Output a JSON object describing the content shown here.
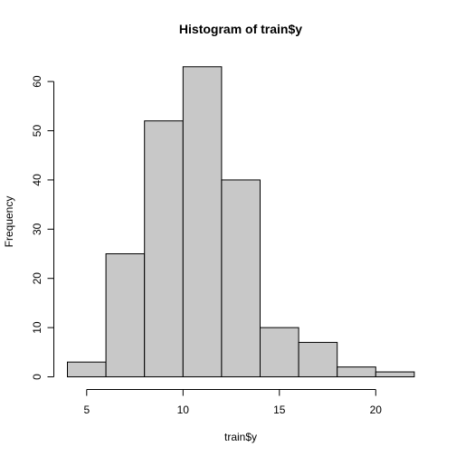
{
  "chart_data": {
    "type": "bar",
    "title": "Histogram of train$y",
    "xlabel": "train$y",
    "ylabel": "Frequency",
    "bins": [
      {
        "start": 4,
        "end": 6,
        "count": 3
      },
      {
        "start": 6,
        "end": 8,
        "count": 25
      },
      {
        "start": 8,
        "end": 10,
        "count": 52
      },
      {
        "start": 10,
        "end": 12,
        "count": 63
      },
      {
        "start": 12,
        "end": 14,
        "count": 40
      },
      {
        "start": 14,
        "end": 16,
        "count": 10
      },
      {
        "start": 16,
        "end": 18,
        "count": 7
      },
      {
        "start": 18,
        "end": 20,
        "count": 2
      },
      {
        "start": 20,
        "end": 22,
        "count": 1
      }
    ],
    "x_ticks": [
      5,
      10,
      15,
      20
    ],
    "y_ticks": [
      0,
      10,
      20,
      30,
      40,
      50,
      60
    ],
    "xlim": [
      4,
      22
    ],
    "ylim": [
      0,
      63
    ],
    "grid": false,
    "bar_color": "#c8c8c8",
    "border_color": "#000000"
  }
}
